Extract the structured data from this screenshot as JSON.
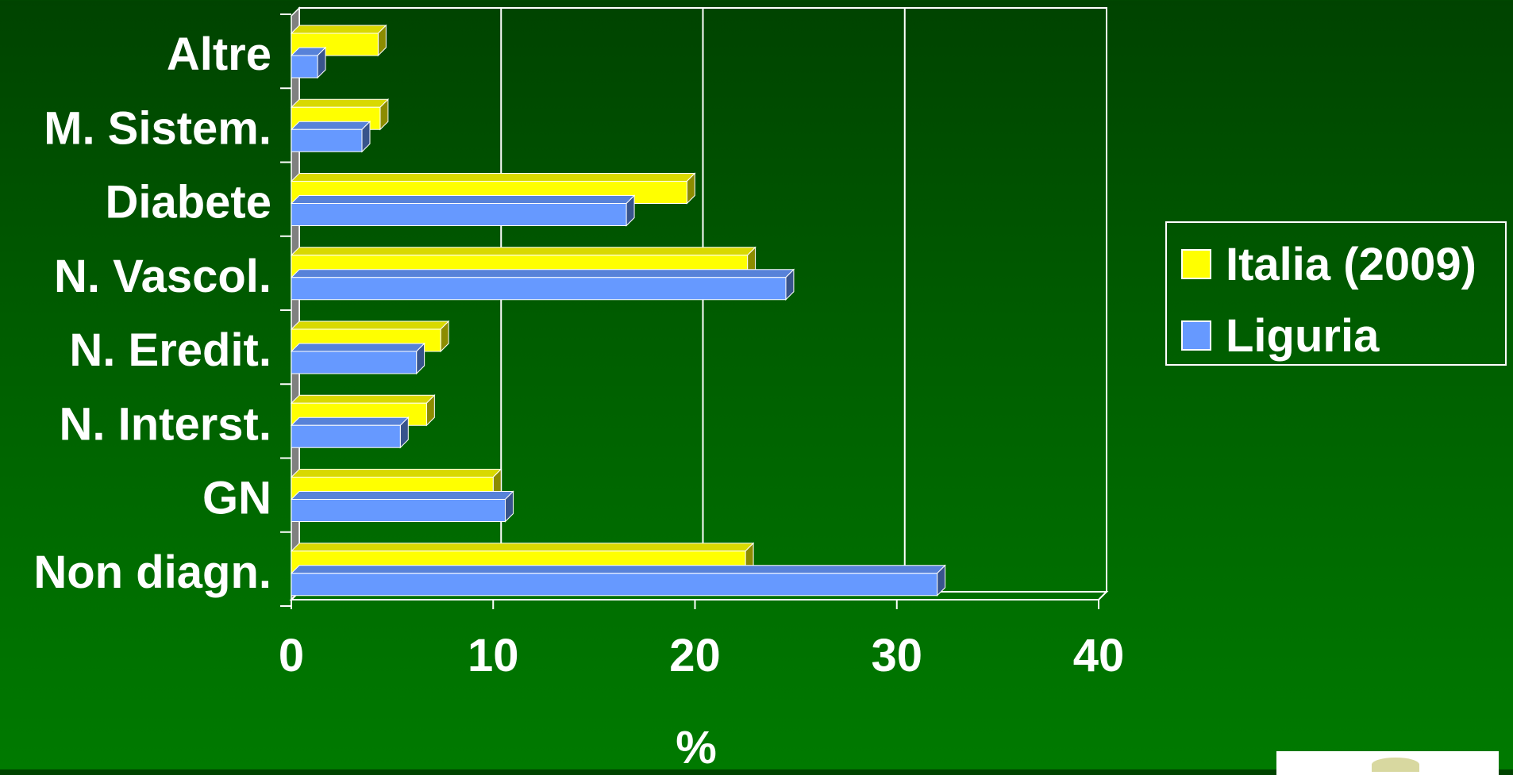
{
  "chart_data": {
    "type": "bar",
    "orientation": "horizontal",
    "title": "",
    "xlabel": "%",
    "ylabel": "",
    "xlim": [
      0,
      40
    ],
    "xticks": [
      0,
      10,
      20,
      30,
      40
    ],
    "categories": [
      "Altre",
      "M. Sistem.",
      "Diabete",
      "N. Vascol.",
      "N. Eredit.",
      "N. Interst.",
      "GN",
      "Non diagn."
    ],
    "series": [
      {
        "name": "Italia (2009)",
        "color": "#ffff00",
        "values": [
          4.3,
          4.4,
          19.6,
          22.6,
          7.4,
          6.7,
          10.0,
          22.5
        ]
      },
      {
        "name": "Liguria",
        "color": "#6699ff",
        "values": [
          1.3,
          3.5,
          16.6,
          24.5,
          6.2,
          5.4,
          10.6,
          32.0
        ]
      }
    ],
    "grid": true,
    "legend_position": "right"
  }
}
